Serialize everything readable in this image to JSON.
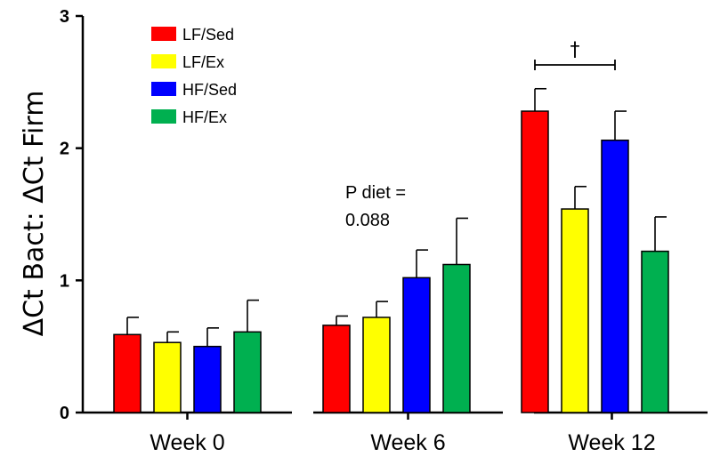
{
  "chart_data": {
    "type": "bar",
    "title": "",
    "ylabel": "ΔCt Bact: ΔCt Firm",
    "xlabel": "",
    "ylim": [
      0,
      3
    ],
    "yticks": [
      0,
      1,
      2,
      3
    ],
    "legend_position": "top-left",
    "categories": [
      "Week 0",
      "Week 6",
      "Week 12"
    ],
    "series": [
      {
        "name": "LF/Sed",
        "color": "#ff0000",
        "values": [
          0.59,
          0.66,
          2.28
        ],
        "errors": [
          0.13,
          0.07,
          0.17
        ]
      },
      {
        "name": "LF/Ex",
        "color": "#ffff00",
        "values": [
          0.53,
          0.72,
          1.54
        ],
        "errors": [
          0.08,
          0.12,
          0.17
        ]
      },
      {
        "name": "HF/Sed",
        "color": "#0000ff",
        "values": [
          0.5,
          1.02,
          2.06
        ],
        "errors": [
          0.14,
          0.21,
          0.22
        ]
      },
      {
        "name": "HF/Ex",
        "color": "#00b050",
        "values": [
          0.61,
          1.12,
          1.22
        ],
        "errors": [
          0.24,
          0.35,
          0.26
        ]
      }
    ],
    "annotations": [
      {
        "category": "Week 6",
        "lines": [
          "P diet =",
          "0.088"
        ]
      },
      {
        "category": "Week 12",
        "symbol": "†",
        "from_series": "LF/Sed",
        "to_series": "HF/Sed"
      }
    ]
  }
}
